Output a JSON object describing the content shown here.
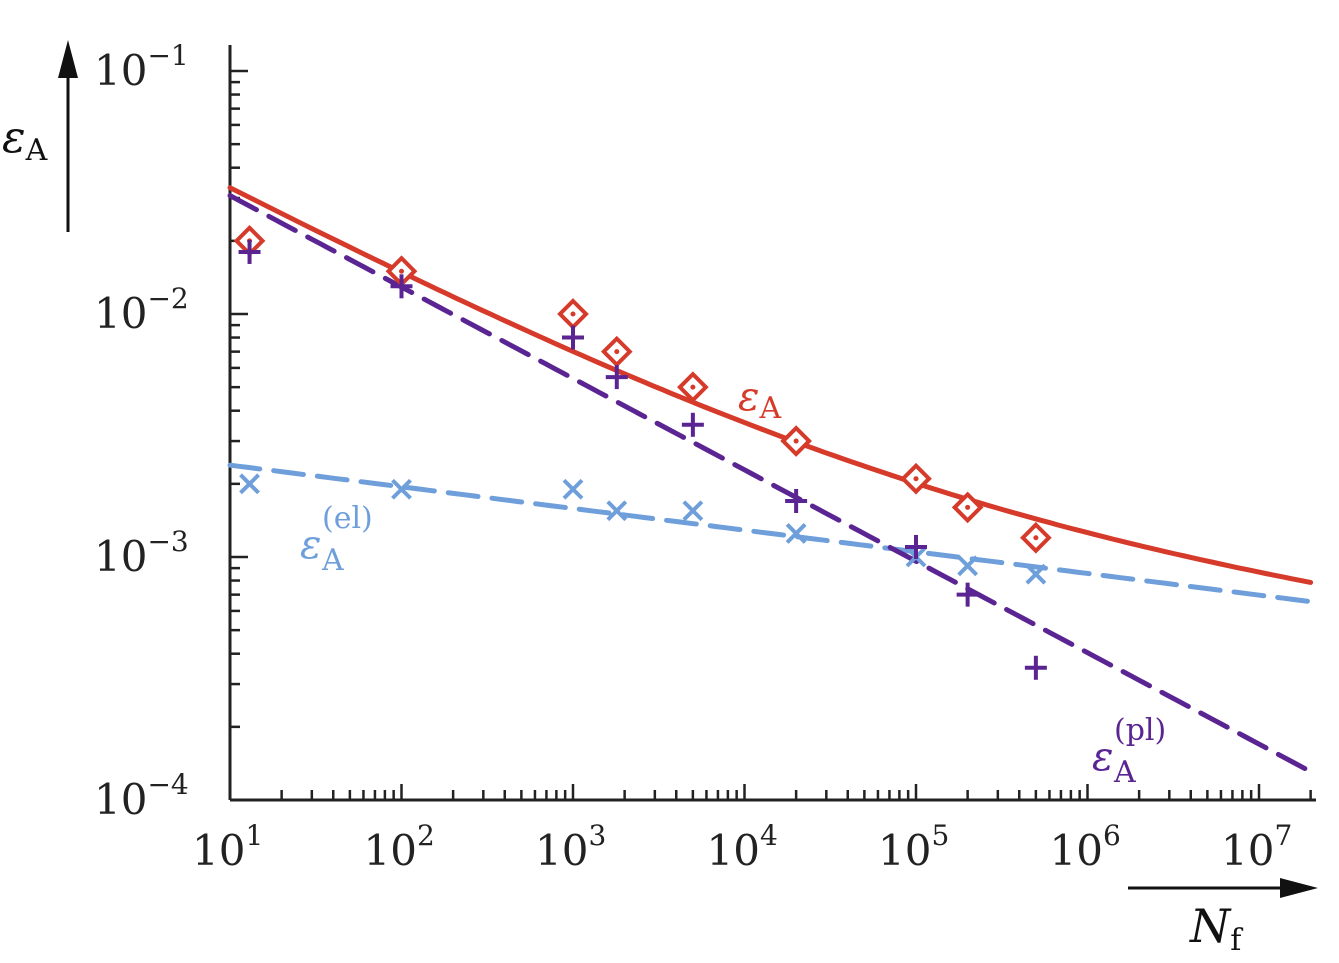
{
  "chart_data": {
    "type": "scatter",
    "x_scale": "log",
    "y_scale": "log",
    "xlim": [
      10,
      20000000
    ],
    "ylim": [
      0.0001,
      0.1
    ],
    "x_ticks": [
      {
        "base": "10",
        "exp": "1",
        "value": 10
      },
      {
        "base": "10",
        "exp": "2",
        "value": 100
      },
      {
        "base": "10",
        "exp": "3",
        "value": 1000
      },
      {
        "base": "10",
        "exp": "4",
        "value": 10000
      },
      {
        "base": "10",
        "exp": "5",
        "value": 100000
      },
      {
        "base": "10",
        "exp": "6",
        "value": 1000000
      },
      {
        "base": "10",
        "exp": "7",
        "value": 10000000
      }
    ],
    "y_ticks": [
      {
        "base": "10",
        "exp": "−4",
        "value": 0.0001
      },
      {
        "base": "10",
        "exp": "−3",
        "value": 0.001
      },
      {
        "base": "10",
        "exp": "−2",
        "value": 0.01
      },
      {
        "base": "10",
        "exp": "−1",
        "value": 0.1
      }
    ],
    "xlabel": {
      "main": "N",
      "sub": "f"
    },
    "ylabel": {
      "main": "ε",
      "sub": "A"
    },
    "grid": false,
    "legend": "none",
    "series": [
      {
        "name": "εA",
        "label": {
          "main": "ε",
          "sub": "A",
          "sup": ""
        },
        "color": "#d63a2a",
        "marker": "diamond",
        "points": [
          {
            "x": 13,
            "y": 0.02
          },
          {
            "x": 100,
            "y": 0.015
          },
          {
            "x": 1000,
            "y": 0.01
          },
          {
            "x": 1800,
            "y": 0.007
          },
          {
            "x": 5000,
            "y": 0.005
          },
          {
            "x": 20000,
            "y": 0.003
          },
          {
            "x": 100000,
            "y": 0.0021
          },
          {
            "x": 200000,
            "y": 0.0016
          },
          {
            "x": 500000,
            "y": 0.0012
          }
        ],
        "fit": {
          "style": "solid",
          "x": [
            10,
            20000000
          ]
        }
      },
      {
        "name": "εA(el)",
        "label": {
          "main": "ε",
          "sub": "A",
          "sup": "(el)"
        },
        "color": "#6f9fdb",
        "marker": "x",
        "points": [
          {
            "x": 13,
            "y": 0.002
          },
          {
            "x": 100,
            "y": 0.0019
          },
          {
            "x": 1000,
            "y": 0.0019
          },
          {
            "x": 1800,
            "y": 0.00155
          },
          {
            "x": 5000,
            "y": 0.00155
          },
          {
            "x": 20000,
            "y": 0.00125
          },
          {
            "x": 100000,
            "y": 0.001
          },
          {
            "x": 200000,
            "y": 0.00092
          },
          {
            "x": 500000,
            "y": 0.00085
          }
        ],
        "fit": {
          "style": "dashed",
          "x": [
            10,
            20000000
          ]
        }
      },
      {
        "name": "εA(pl)",
        "label": {
          "main": "ε",
          "sub": "A",
          "sup": "(pl)"
        },
        "color": "#5a2592",
        "marker": "plus",
        "points": [
          {
            "x": 13,
            "y": 0.018
          },
          {
            "x": 100,
            "y": 0.013
          },
          {
            "x": 1000,
            "y": 0.008
          },
          {
            "x": 1800,
            "y": 0.0055
          },
          {
            "x": 5000,
            "y": 0.0035
          },
          {
            "x": 20000,
            "y": 0.0017
          },
          {
            "x": 100000,
            "y": 0.0011
          },
          {
            "x": 200000,
            "y": 0.0007
          },
          {
            "x": 500000,
            "y": 0.00035
          }
        ],
        "fit": {
          "style": "dashed",
          "x": [
            10,
            20000000
          ]
        }
      }
    ]
  }
}
